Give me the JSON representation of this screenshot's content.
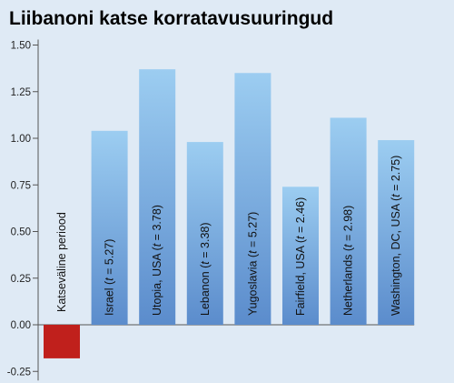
{
  "chart_data": {
    "type": "bar",
    "title": "Liibanoni katse korratavusuuringud",
    "ylim": [
      -0.25,
      1.5
    ],
    "yticks": [
      "1.50",
      "1.25",
      "1.00",
      "0.75",
      "0.50",
      "0.25",
      "0.00",
      "-0.25"
    ],
    "ytick_values": [
      1.5,
      1.25,
      1.0,
      0.75,
      0.5,
      0.25,
      0.0,
      -0.25
    ],
    "grid": false,
    "legend": "none",
    "categories": [
      {
        "label": "Katseväline periood",
        "t": ""
      },
      {
        "label": "Israel (",
        "t": "5.27"
      },
      {
        "label": "Utopia, USA (",
        "t": "3.78"
      },
      {
        "label": "Lebanon (",
        "t": "3.38"
      },
      {
        "label": "Yugoslavia (",
        "t": "5.27"
      },
      {
        "label": "Fairfield, USA (",
        "t": "2.46"
      },
      {
        "label": "Netherlands (",
        "t": "2.98"
      },
      {
        "label": "Washington, DC, USA (",
        "t": "2.75"
      }
    ],
    "values": [
      -0.18,
      1.04,
      1.37,
      0.98,
      1.35,
      0.74,
      1.11,
      0.99
    ],
    "colors": {
      "positive_top": "#9ccdf1",
      "positive_bottom": "#5b8ccc",
      "negative": "#c0201c",
      "background": "#dfeaf5",
      "axis": "#555555"
    }
  }
}
